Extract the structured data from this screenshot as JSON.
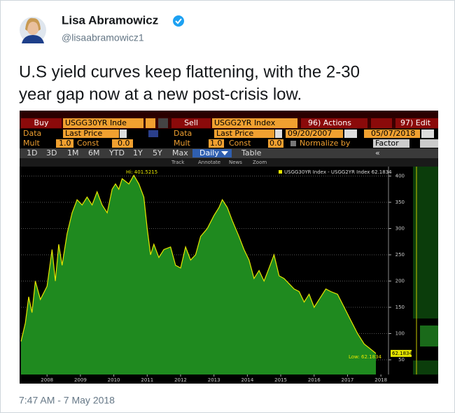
{
  "tweet": {
    "author_name": "Lisa Abramowicz",
    "handle": "@lisaabramowicz1",
    "text_lines": [
      "U.S yield curves keep flattening, with the 2-30",
      "year gap now at a new post-crisis low."
    ],
    "timestamp": "7:47 AM - 7 May 2018"
  },
  "terminal": {
    "buy": "Buy",
    "buy_ticker": "USGG30YR Inde",
    "sell": "Sell",
    "sell_ticker": "USGG2YR Index",
    "actions": "96) Actions",
    "edit": "97) Edit",
    "data_label_1": "Data",
    "field_1": "Last Price",
    "data_label_2": "Data",
    "field_2": "Last Price",
    "start_date": "09/20/2007",
    "end_date": "05/07/2018",
    "mult_label_1": "Mult",
    "mult_1": "1.0",
    "const_label_1": "Const",
    "const_1": "0.0",
    "mult_label_2": "Mult",
    "mult_2": "1.0",
    "const_label_2": "Const",
    "const_2": "0.0",
    "normalize": "Normalize by",
    "factor": "Factor",
    "tabs": [
      "1D",
      "3D",
      "1M",
      "6M",
      "YTD",
      "1Y",
      "5Y",
      "Max"
    ],
    "period": "Daily",
    "table": "Table",
    "tools": [
      "Track",
      "Annotate",
      "News",
      "Zoom"
    ]
  },
  "chart_data": {
    "type": "area",
    "x": [
      2007.72,
      2007.85,
      2007.95,
      2008.05,
      2008.15,
      2008.3,
      2008.5,
      2008.65,
      2008.75,
      2008.85,
      2008.95,
      2009.1,
      2009.25,
      2009.4,
      2009.55,
      2009.7,
      2009.85,
      2010.0,
      2010.15,
      2010.3,
      2010.45,
      2010.55,
      2010.65,
      2010.75,
      2010.95,
      2011.1,
      2011.25,
      2011.4,
      2011.5,
      2011.6,
      2011.7,
      2011.85,
      2012.0,
      2012.2,
      2012.35,
      2012.5,
      2012.65,
      2012.8,
      2012.95,
      2013.1,
      2013.3,
      2013.5,
      2013.65,
      2013.75,
      2013.9,
      2014.05,
      2014.25,
      2014.4,
      2014.55,
      2014.7,
      2014.85,
      2015.0,
      2015.15,
      2015.3,
      2015.45,
      2015.6,
      2015.75,
      2015.9,
      2016.05,
      2016.2,
      2016.35,
      2016.5,
      2016.65,
      2016.85,
      2017.0,
      2017.2,
      2017.4,
      2017.6,
      2017.8,
      2018.0,
      2018.2,
      2018.35
    ],
    "series": [
      {
        "name": "USGG30YR Index - USGG2YR Index 62.1834",
        "color": "#1f8a1f",
        "values": [
          85,
          120,
          170,
          140,
          200,
          165,
          190,
          260,
          200,
          270,
          230,
          290,
          330,
          355,
          345,
          360,
          345,
          370,
          345,
          330,
          375,
          385,
          375,
          395,
          385,
          401.5215,
          385,
          360,
          300,
          250,
          270,
          245,
          260,
          265,
          230,
          225,
          265,
          240,
          250,
          285,
          300,
          325,
          340,
          355,
          340,
          315,
          285,
          260,
          240,
          205,
          220,
          200,
          225,
          250,
          210,
          205,
          195,
          185,
          180,
          160,
          175,
          150,
          165,
          185,
          180,
          175,
          150,
          125,
          100,
          80,
          70,
          62.1834
        ]
      }
    ],
    "line_color": "#e6e600",
    "hi_label": "Hi: 401.5215",
    "low_label": "Low: 62.1834",
    "last_tag": "62.1834",
    "xlim": [
      2007.72,
      2018.35
    ],
    "xticks": [
      {
        "value": 2008.5,
        "label": "2008"
      },
      {
        "value": 2009.5,
        "label": "2009"
      },
      {
        "value": 2010.5,
        "label": "2010"
      },
      {
        "value": 2011.5,
        "label": "2011"
      },
      {
        "value": 2012.5,
        "label": "2012"
      },
      {
        "value": 2013.5,
        "label": "2013"
      },
      {
        "value": 2014.5,
        "label": "2014"
      },
      {
        "value": 2015.5,
        "label": "2015"
      },
      {
        "value": 2016.5,
        "label": "2016"
      },
      {
        "value": 2017.5,
        "label": "2017"
      },
      {
        "value": 2018.5,
        "label": "2018"
      }
    ],
    "ylim": [
      22,
      418
    ],
    "yticks": [
      50,
      100,
      150,
      200,
      250,
      300,
      350,
      400
    ],
    "grid": true
  }
}
